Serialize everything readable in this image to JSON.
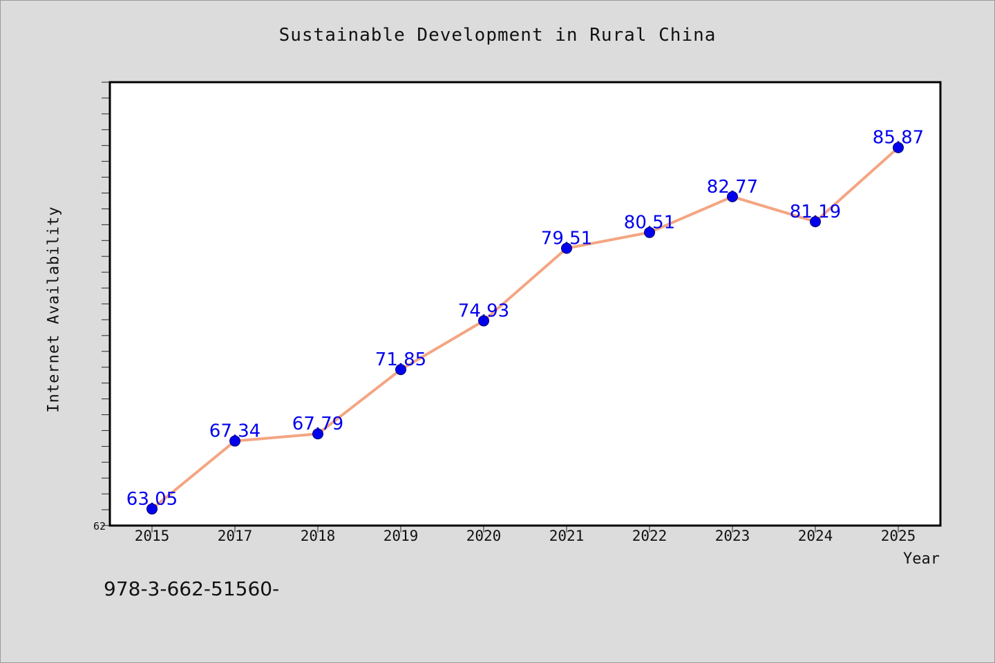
{
  "page": {
    "background": "#dcdcdc",
    "footer_text": "978-3-662-51560-"
  },
  "chart_data": {
    "type": "line",
    "title": "Sustainable Development in Rural China",
    "xlabel": "Year",
    "ylabel": "Internet Availability",
    "categories": [
      "2015",
      "2017",
      "2018",
      "2019",
      "2020",
      "2021",
      "2022",
      "2023",
      "2024",
      "2025"
    ],
    "series": [
      {
        "values": [
          63.05,
          67.34,
          67.79,
          71.85,
          74.93,
          79.51,
          80.51,
          82.77,
          81.19,
          85.87
        ],
        "line_color": "#f4a582",
        "marker_color": "#0000ee",
        "label_color": "#0000ee"
      }
    ],
    "data_labels": [
      "63.05",
      "67.34",
      "67.79",
      "71.85",
      "74.93",
      "79.51",
      "80.51",
      "82.77",
      "81.19",
      "85.87"
    ],
    "ylim": [
      62,
      90
    ],
    "y_tick_labels": [
      "62"
    ],
    "grid": false,
    "legend": false
  }
}
